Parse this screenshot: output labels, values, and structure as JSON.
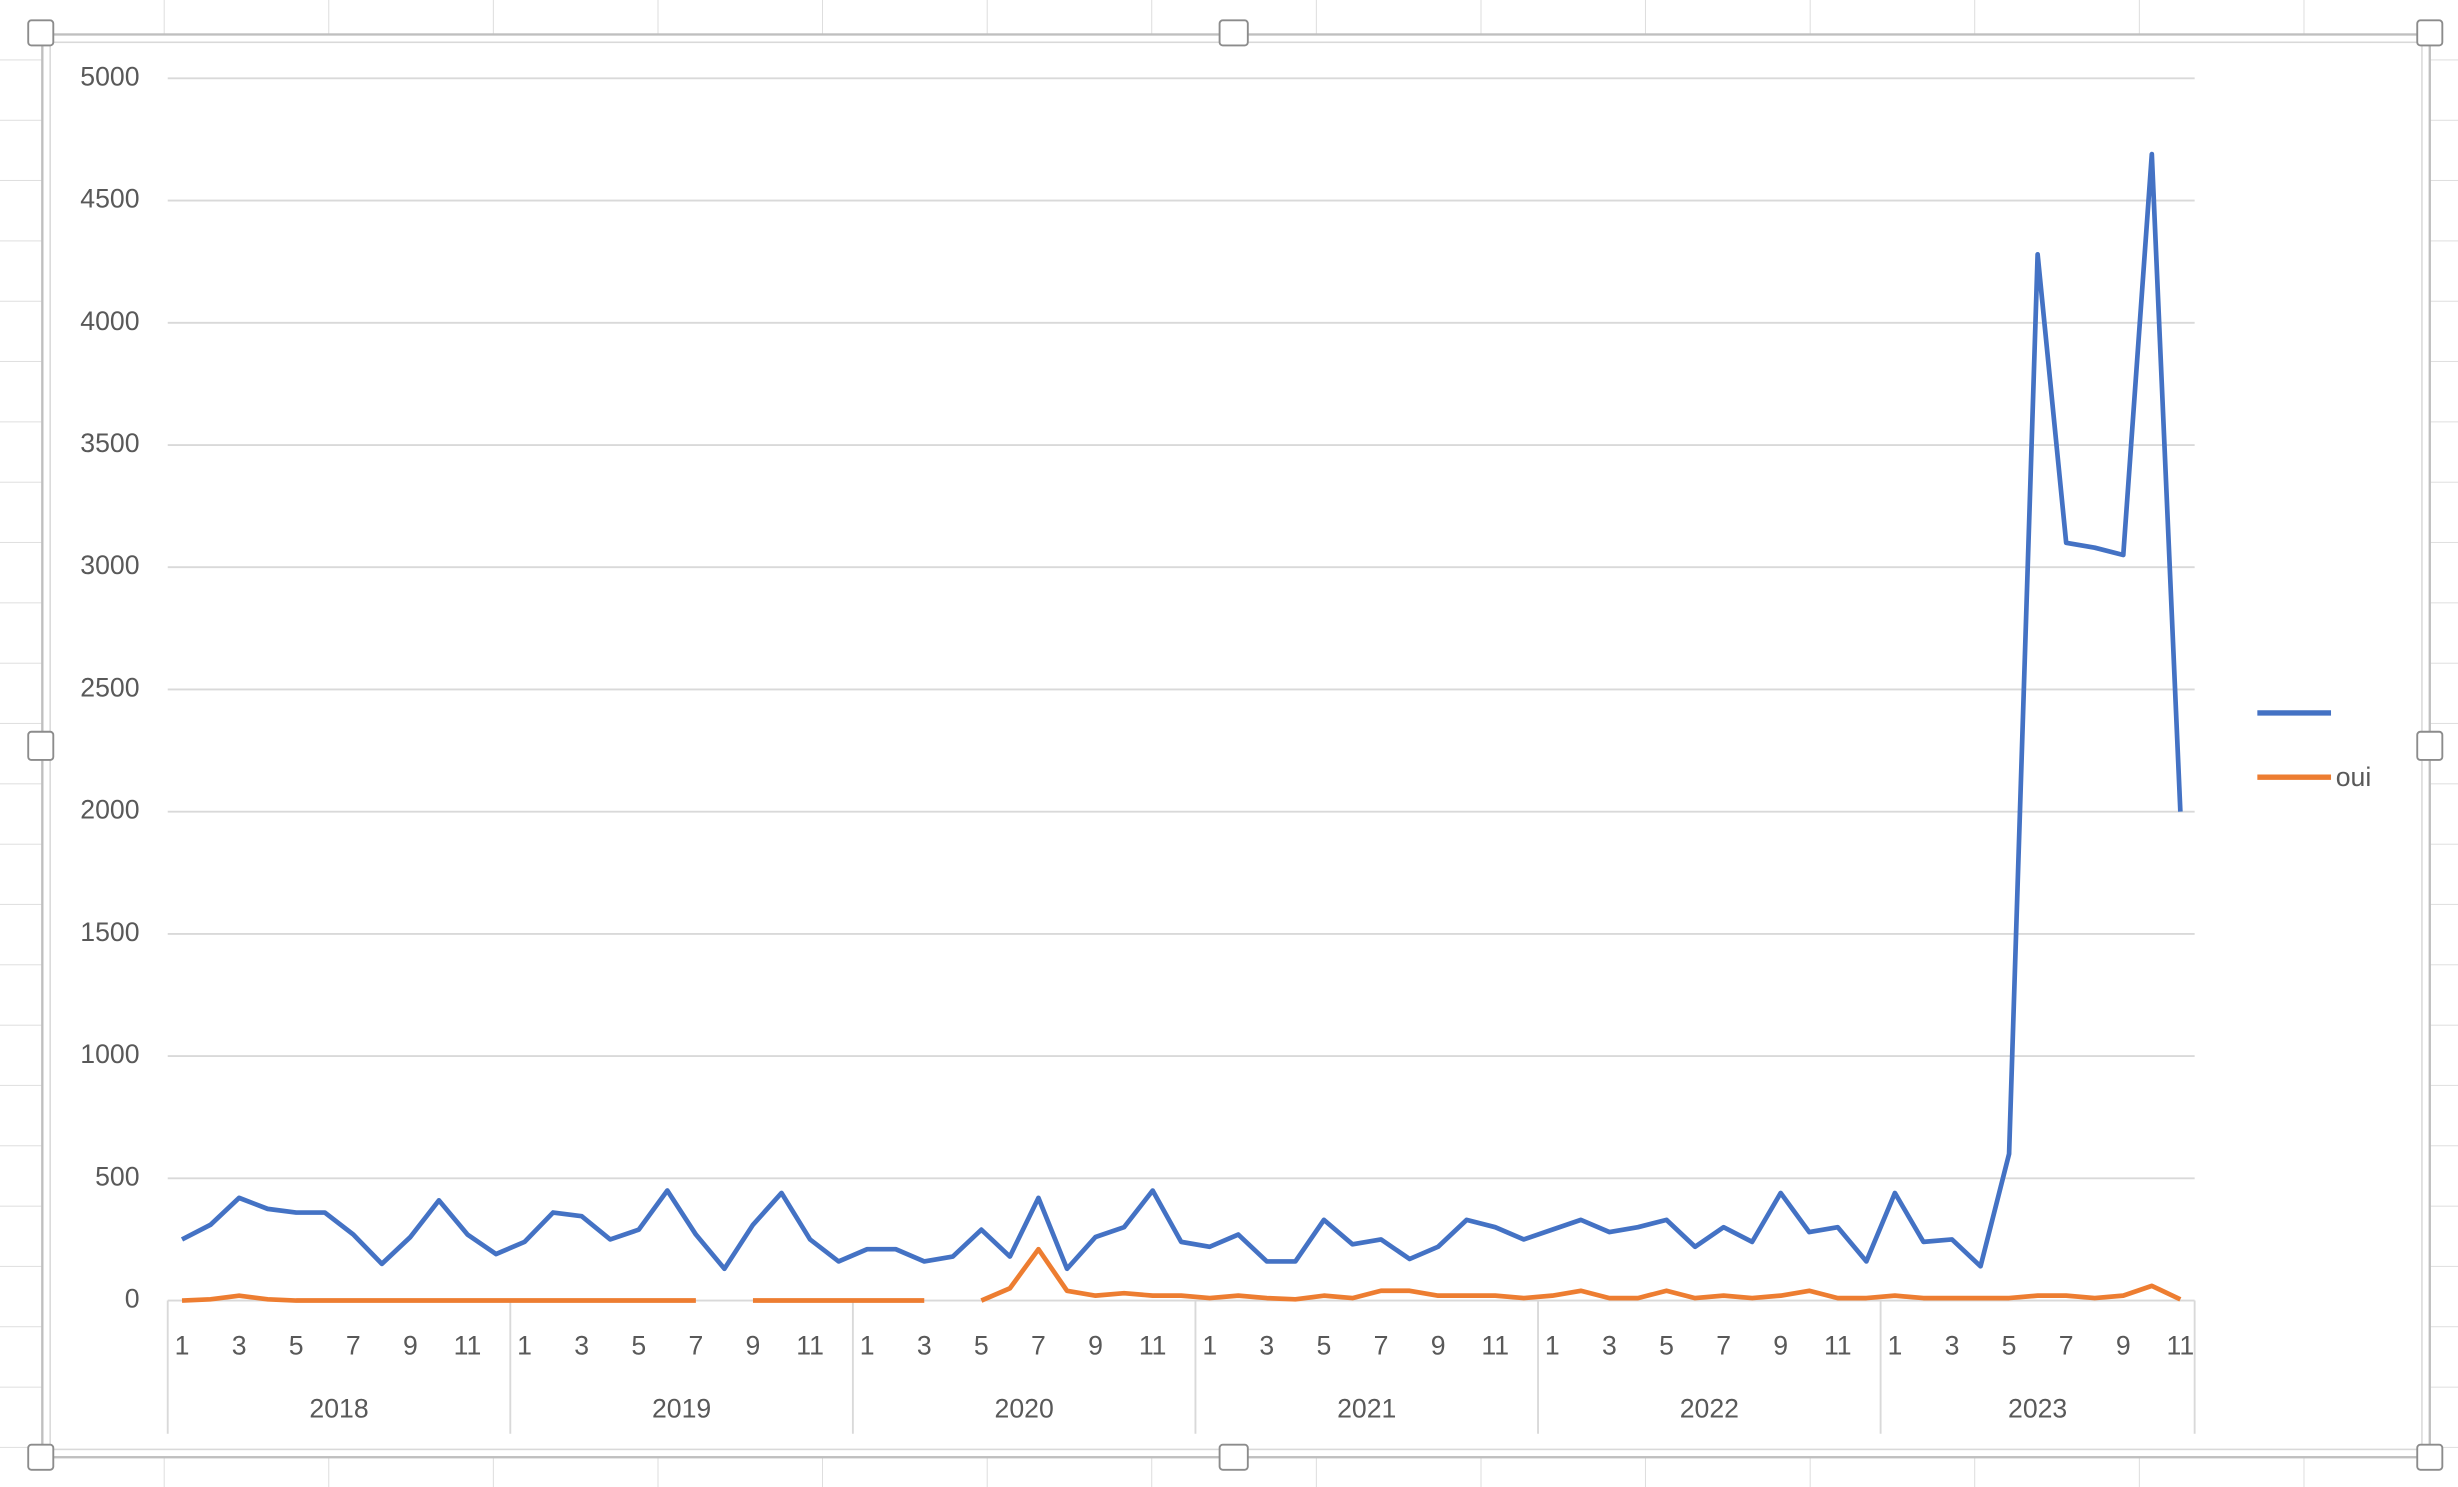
{
  "chart_data": {
    "type": "line",
    "categories": [
      "1",
      null,
      "3",
      null,
      "5",
      null,
      "7",
      null,
      "9",
      null,
      "11",
      null,
      "1",
      null,
      "3",
      null,
      "5",
      null,
      "7",
      null,
      "9",
      null,
      "11",
      null,
      "1",
      null,
      "3",
      null,
      "5",
      null,
      "7",
      null,
      "9",
      null,
      "11",
      null,
      "1",
      null,
      "3",
      null,
      "5",
      null,
      "7",
      null,
      "9",
      null,
      "11",
      null,
      "1",
      null,
      "3",
      null,
      "5",
      null,
      "7",
      null,
      "9",
      null,
      "11",
      null,
      "1",
      null,
      "3",
      null,
      "5",
      null,
      "7",
      null,
      "9",
      null,
      "11"
    ],
    "years": [
      "2018",
      "2019",
      "2020",
      "2021",
      "2022",
      "2023"
    ],
    "series": [
      {
        "name": null,
        "color": "#4472c4",
        "values": [
          250,
          310,
          420,
          375,
          360,
          360,
          270,
          150,
          260,
          410,
          270,
          190,
          240,
          360,
          345,
          250,
          290,
          450,
          270,
          130,
          310,
          440,
          250,
          160,
          210,
          210,
          160,
          180,
          290,
          180,
          420,
          130,
          260,
          300,
          450,
          240,
          220,
          270,
          160,
          160,
          330,
          230,
          250,
          170,
          220,
          330,
          300,
          250,
          290,
          330,
          280,
          300,
          330,
          220,
          300,
          240,
          440,
          280,
          300,
          160,
          440,
          240,
          250,
          140,
          600,
          4280,
          3100,
          3080,
          3050,
          4690,
          2000
        ]
      },
      {
        "name": "oui",
        "color": "#ed7d31",
        "values": [
          0,
          5,
          20,
          5,
          0,
          0,
          0,
          0,
          0,
          0,
          0,
          0,
          0,
          0,
          0,
          0,
          0,
          0,
          0,
          null,
          0,
          0,
          0,
          0,
          0,
          0,
          0,
          null,
          0,
          50,
          210,
          40,
          20,
          30,
          20,
          20,
          10,
          20,
          10,
          5,
          20,
          10,
          40,
          40,
          20,
          20,
          20,
          10,
          20,
          40,
          10,
          10,
          40,
          10,
          20,
          10,
          20,
          40,
          10,
          10,
          20,
          10,
          10,
          10,
          10,
          20,
          20,
          10,
          20,
          60,
          5
        ]
      }
    ],
    "ylim": [
      0,
      5000
    ],
    "yticks": [
      0,
      500,
      1000,
      1500,
      2000,
      2500,
      3000,
      3500,
      4000,
      4500,
      5000
    ],
    "grid": true,
    "legend": "right"
  }
}
